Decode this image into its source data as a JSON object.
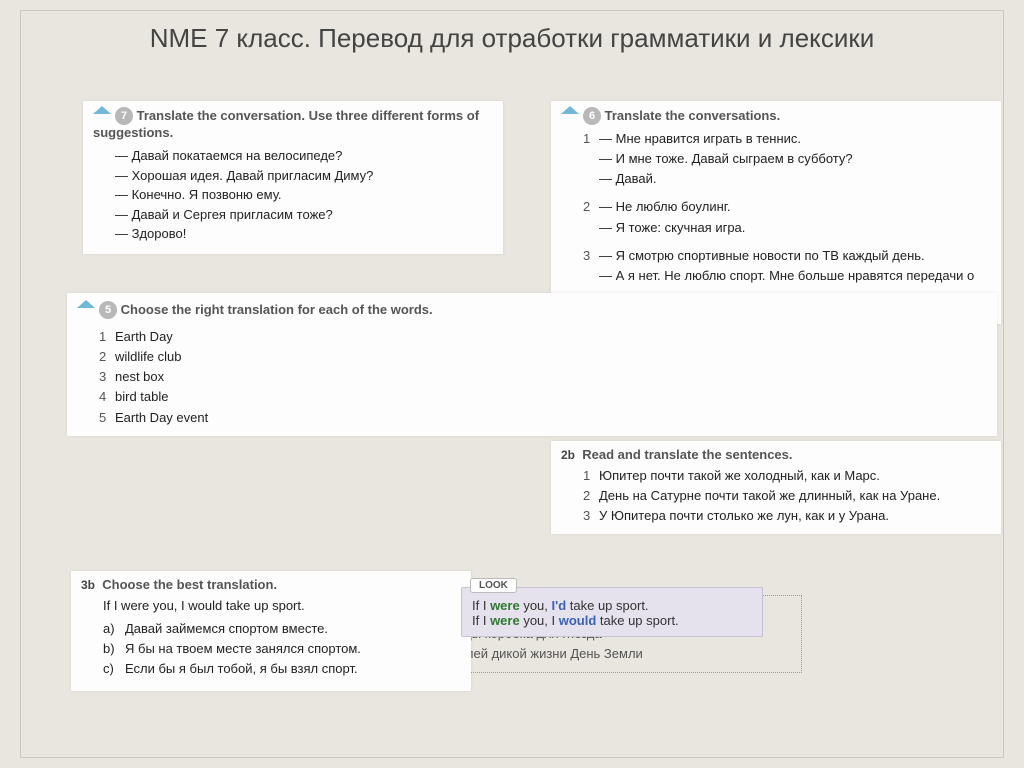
{
  "title": "NME 7 класс. Перевод для отработки грамматики и лексики",
  "ex7": {
    "num": "7",
    "instr": "Translate the conversation. Use three different forms of suggestions.",
    "lines": [
      "— Давай покатаемся на велосипеде?",
      "— Хорошая идея. Давай пригласим Диму?",
      "— Конечно. Я позвоню ему.",
      "— Давай и Сергея пригласим тоже?",
      "— Здорово!"
    ]
  },
  "ex6": {
    "num": "6",
    "instr": "Translate the conversations.",
    "groups": [
      {
        "n": "1",
        "lines": [
          "— Мне нравится играть в теннис.",
          "— И мне тоже. Давай сыграем в субботу?",
          "— Давай."
        ]
      },
      {
        "n": "2",
        "lines": [
          "— Не люблю боулинг.",
          "— Я тоже: скучная игра."
        ]
      },
      {
        "n": "3",
        "lines": [
          "— Я смотрю спортивные новости по ТВ каждый день.",
          "— А я нет. Не люблю спорт. Мне больше нравятся передачи о природе."
        ]
      }
    ]
  },
  "ex5": {
    "num": "5",
    "instr": "Choose the right translation for each of the words.",
    "items": [
      {
        "n": "1",
        "w": "Earth Day"
      },
      {
        "n": "2",
        "w": "wildlife club"
      },
      {
        "n": "3",
        "w": "nest box"
      },
      {
        "n": "4",
        "w": "bird table"
      },
      {
        "n": "5",
        "w": "Earth Day event"
      }
    ],
    "box": "птичий столик   субботник   скворечник   земной день\nклуб любителей природы   коробка для гнезда\nкормушка   клуб любителей дикой жизни   День Земли"
  },
  "ex2b": {
    "num": "2b",
    "instr": "Read and translate the sentences.",
    "items": [
      {
        "n": "1",
        "t": "Юпитер почти такой же холодный, как и Марс."
      },
      {
        "n": "2",
        "t": "День на Сатурне почти такой же длинный, как на Уране."
      },
      {
        "n": "3",
        "t": "У Юпитера почти столько же лун, как и у Урана."
      }
    ]
  },
  "ex3b": {
    "num": "3b",
    "instr": "Choose the best translation.",
    "stem": "If I were you, I would take up sport.",
    "opts": [
      {
        "k": "a)",
        "t": "Давай займемся спортом вместе."
      },
      {
        "k": "b)",
        "t": "Я бы на твоем месте занялся спортом."
      },
      {
        "k": "c)",
        "t": "Если бы я был тобой, я бы взял спорт."
      }
    ]
  },
  "look": {
    "label": "LOOK",
    "l1": {
      "a": "If I ",
      "b": "were",
      "c": " you, ",
      "d": "I'd",
      "e": " take up sport."
    },
    "l2": {
      "a": "If I ",
      "b": "were",
      "c": " you, I ",
      "d": "would",
      "e": " take up sport."
    }
  }
}
